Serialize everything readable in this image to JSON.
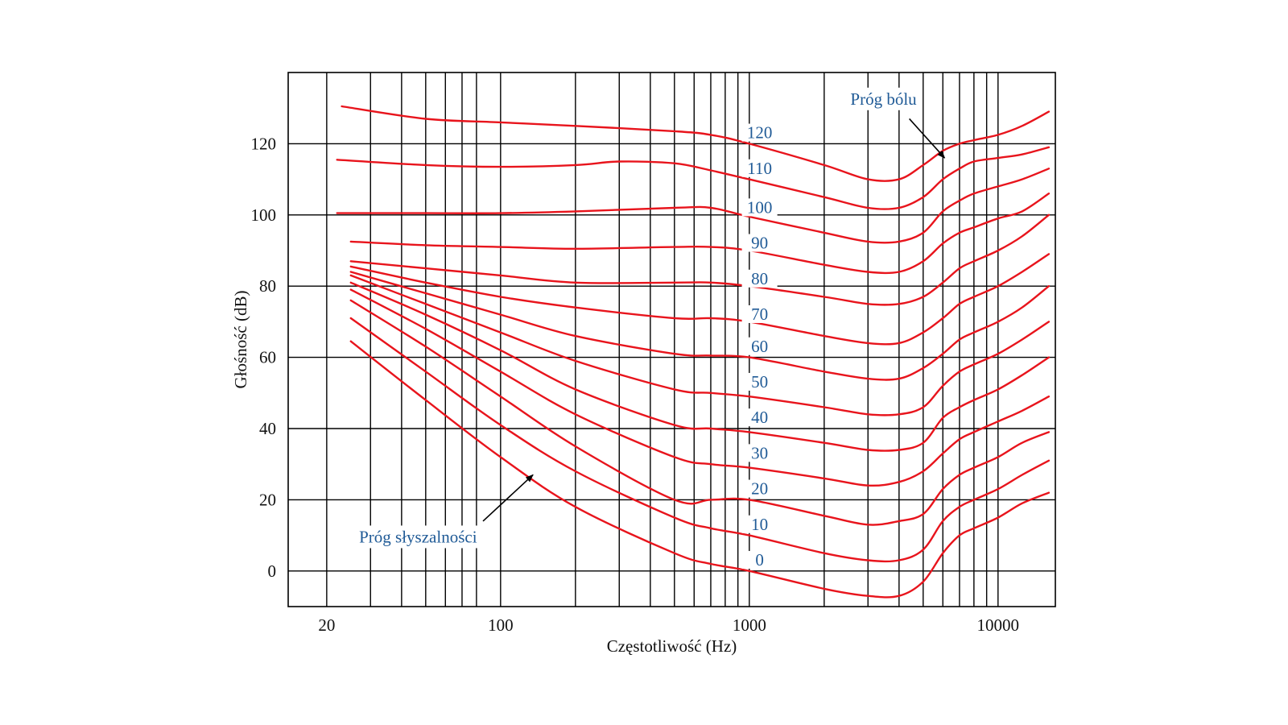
{
  "chart_data": {
    "type": "line",
    "title": "",
    "xlabel": "Częstotliwość (Hz)",
    "ylabel": "Głośność (dB)",
    "x_scale": "log",
    "xlim": [
      14,
      17000
    ],
    "ylim": [
      -10,
      140
    ],
    "x_tick_labels": [
      {
        "value": 20,
        "label": "20"
      },
      {
        "value": 100,
        "label": "100"
      },
      {
        "value": 1000,
        "label": "1000"
      },
      {
        "value": 10000,
        "label": "10000"
      }
    ],
    "y_tick_labels": [
      {
        "value": 0,
        "label": "0"
      },
      {
        "value": 20,
        "label": "20"
      },
      {
        "value": 40,
        "label": "40"
      },
      {
        "value": 60,
        "label": "60"
      },
      {
        "value": 80,
        "label": "80"
      },
      {
        "value": 100,
        "label": "100"
      },
      {
        "value": 120,
        "label": "120"
      }
    ],
    "x_grid_lines": [
      20,
      30,
      40,
      50,
      60,
      70,
      80,
      100,
      200,
      300,
      400,
      500,
      600,
      700,
      800,
      900,
      1000,
      2000,
      3000,
      4000,
      5000,
      6000,
      7000,
      8000,
      9000,
      10000
    ],
    "y_grid_lines": [
      0,
      20,
      40,
      60,
      80,
      100,
      120
    ],
    "line_color": "#e8141c",
    "label_color": "#1f5a96",
    "series": [
      {
        "name": "0",
        "label": "0",
        "label_at": [
          1100,
          2
        ],
        "x": [
          25,
          50,
          100,
          200,
          500,
          700,
          1000,
          2000,
          3000,
          4000,
          5000,
          6000,
          7000,
          8000,
          10000,
          12500,
          16000
        ],
        "y": [
          64.5,
          48,
          32,
          18,
          5,
          2,
          0,
          -5,
          -7,
          -7,
          -3,
          5,
          10,
          12,
          15,
          19,
          22
        ]
      },
      {
        "name": "10",
        "label": "10",
        "label_at": [
          1100,
          12
        ],
        "x": [
          25,
          50,
          100,
          200,
          500,
          700,
          1000,
          2000,
          3000,
          4000,
          5000,
          6000,
          7000,
          8000,
          10000,
          12500,
          16000
        ],
        "y": [
          71,
          56,
          41,
          28,
          15,
          12,
          10,
          5,
          3,
          3,
          6,
          14,
          18,
          20,
          23,
          27,
          31
        ]
      },
      {
        "name": "20",
        "label": "20",
        "label_at": [
          1100,
          22
        ],
        "x": [
          25,
          50,
          100,
          200,
          500,
          700,
          1000,
          2000,
          3000,
          4000,
          5000,
          6000,
          7000,
          8000,
          10000,
          12500,
          16000
        ],
        "y": [
          76,
          63,
          49,
          35,
          20,
          20,
          20,
          15.5,
          13,
          14,
          16,
          23,
          27,
          29,
          32,
          36,
          39
        ]
      },
      {
        "name": "30",
        "label": "30",
        "label_at": [
          1100,
          32
        ],
        "x": [
          25,
          50,
          100,
          200,
          500,
          700,
          1000,
          2000,
          3000,
          4000,
          5000,
          6000,
          7000,
          8000,
          10000,
          12500,
          16000
        ],
        "y": [
          79,
          68,
          56,
          44,
          32,
          30,
          29,
          26,
          24,
          25,
          28,
          33,
          37,
          39,
          42,
          45,
          49
        ]
      },
      {
        "name": "40",
        "label": "40",
        "label_at": [
          1100,
          42
        ],
        "x": [
          25,
          50,
          100,
          200,
          500,
          700,
          1000,
          2000,
          3000,
          4000,
          5000,
          6000,
          7000,
          8000,
          10000,
          12500,
          16000
        ],
        "y": [
          81,
          72,
          62,
          51,
          41,
          40,
          39,
          36,
          34,
          34,
          36,
          43,
          46,
          48,
          51,
          55,
          60
        ]
      },
      {
        "name": "50",
        "label": "50",
        "label_at": [
          1100,
          52
        ],
        "x": [
          25,
          50,
          100,
          200,
          500,
          700,
          1000,
          2000,
          3000,
          4000,
          5000,
          6000,
          7000,
          8000,
          10000,
          12500,
          16000
        ],
        "y": [
          83,
          75,
          67,
          59,
          51,
          50,
          49,
          46,
          44,
          44,
          46,
          52,
          56,
          58,
          61,
          65,
          70
        ]
      },
      {
        "name": "60",
        "label": "60",
        "label_at": [
          1100,
          62
        ],
        "x": [
          25,
          50,
          100,
          200,
          500,
          700,
          1000,
          2000,
          3000,
          4000,
          5000,
          6000,
          7000,
          8000,
          10000,
          12500,
          16000
        ],
        "y": [
          84,
          78,
          72,
          66,
          61,
          60.5,
          60,
          56,
          54,
          54,
          57,
          61,
          65,
          67,
          70,
          74,
          80
        ]
      },
      {
        "name": "70",
        "label": "70",
        "label_at": [
          1100,
          71
        ],
        "x": [
          25,
          50,
          100,
          200,
          500,
          700,
          1000,
          2000,
          3000,
          4000,
          5000,
          6000,
          7000,
          8000,
          10000,
          12500,
          16000
        ],
        "y": [
          85.5,
          81,
          77,
          74,
          71,
          71,
          70,
          66,
          64,
          64,
          67,
          71,
          75,
          77,
          80,
          84,
          89
        ]
      },
      {
        "name": "80",
        "label": "80",
        "label_at": [
          1100,
          81
        ],
        "x": [
          25,
          50,
          100,
          200,
          500,
          700,
          1000,
          2000,
          3000,
          4000,
          5000,
          6000,
          7000,
          8000,
          10000,
          12500,
          16000
        ],
        "y": [
          87,
          85,
          83,
          81,
          81,
          81,
          80,
          77,
          75,
          75,
          77,
          81,
          85,
          87,
          90,
          94,
          100
        ]
      },
      {
        "name": "90",
        "label": "90",
        "label_at": [
          1100,
          91
        ],
        "x": [
          25,
          50,
          100,
          200,
          500,
          700,
          1000,
          2000,
          3000,
          4000,
          5000,
          6000,
          7000,
          8000,
          10000,
          12500,
          16000
        ],
        "y": [
          92.5,
          91.5,
          91,
          90.5,
          91,
          91,
          90,
          86,
          84,
          84,
          87,
          92,
          95,
          96.5,
          99,
          101,
          106
        ]
      },
      {
        "name": "100",
        "label": "100",
        "label_at": [
          1100,
          101
        ],
        "x": [
          22,
          50,
          100,
          200,
          500,
          700,
          1000,
          2000,
          3000,
          4000,
          5000,
          6000,
          7000,
          8000,
          10000,
          12500,
          16000
        ],
        "y": [
          100.5,
          100.5,
          100.5,
          101,
          102,
          102,
          99.5,
          95,
          92.5,
          92.5,
          95,
          101,
          104,
          106,
          108,
          110,
          113
        ]
      },
      {
        "name": "110",
        "label": "110",
        "label_at": [
          1100,
          112
        ],
        "x": [
          22,
          50,
          100,
          200,
          300,
          500,
          700,
          1000,
          2000,
          3000,
          4000,
          5000,
          6000,
          7000,
          8000,
          10000,
          12500,
          16000
        ],
        "y": [
          115.5,
          114,
          113.5,
          114,
          115,
          114.5,
          112.5,
          110,
          105,
          102,
          102,
          105,
          110,
          113,
          115,
          116,
          117,
          119
        ]
      },
      {
        "name": "120",
        "label": "120",
        "label_at": [
          1100,
          122
        ],
        "x": [
          23,
          50,
          100,
          200,
          500,
          700,
          1000,
          2000,
          3000,
          4000,
          5000,
          6000,
          7000,
          8000,
          10000,
          12500,
          16000
        ],
        "y": [
          130.5,
          127,
          126,
          125,
          123.5,
          122.5,
          120,
          114,
          110,
          110,
          114,
          118,
          120,
          121,
          122.5,
          125,
          129
        ]
      }
    ],
    "annotations": [
      {
        "text": "Próg bólu",
        "text_at": [
          2550,
          131
        ],
        "arrow_from": [
          4400,
          127
        ],
        "arrow_to": [
          6100,
          116
        ]
      },
      {
        "text": "Próg słyszalności",
        "text_at": [
          27,
          8
        ],
        "arrow_from": [
          85,
          14
        ],
        "arrow_to": [
          135,
          27
        ]
      }
    ]
  }
}
